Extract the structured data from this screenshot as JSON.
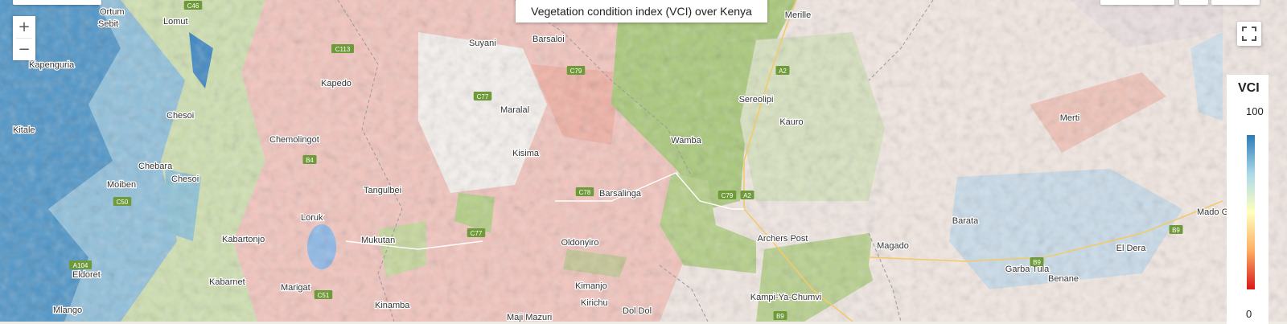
{
  "title": "Vegetation condition index (VCI) over Kenya",
  "legend": {
    "title": "VCI",
    "max": "100",
    "min": "0",
    "colors": [
      "#2c7bb6",
      "#abd9e9",
      "#ffffbf",
      "#fdae61",
      "#d7191c"
    ]
  },
  "controls": {
    "zoom_in": "+",
    "zoom_out": "−"
  },
  "places": [
    {
      "name": "Ortum"
    },
    {
      "name": "Sebit"
    },
    {
      "name": "Lomut"
    },
    {
      "name": "Kapenguria"
    },
    {
      "name": "Suyani"
    },
    {
      "name": "Barsaloi"
    },
    {
      "name": "Merille"
    },
    {
      "name": "Kapedo"
    },
    {
      "name": "Maralal"
    },
    {
      "name": "Sereolipi"
    },
    {
      "name": "Kauro"
    },
    {
      "name": "Chesoi"
    },
    {
      "name": "Merti"
    },
    {
      "name": "Kitale"
    },
    {
      "name": "Chemolingot"
    },
    {
      "name": "Wamba"
    },
    {
      "name": "Kisima"
    },
    {
      "name": "Chebara"
    },
    {
      "name": "Chesoi"
    },
    {
      "name": "Moiben"
    },
    {
      "name": "Tangulbei"
    },
    {
      "name": "Barsalinga"
    },
    {
      "name": "Barata"
    },
    {
      "name": "Loruk"
    },
    {
      "name": "Mado Gashi"
    },
    {
      "name": "Kabartonjo"
    },
    {
      "name": "Mukutan"
    },
    {
      "name": "Oldonyiro"
    },
    {
      "name": "Archers Post"
    },
    {
      "name": "Magado"
    },
    {
      "name": "El Dera"
    },
    {
      "name": "Eldoret"
    },
    {
      "name": "Kabarnet"
    },
    {
      "name": "Marigat"
    },
    {
      "name": "Kimanjo"
    },
    {
      "name": "Kampi-Ya-Chumvi"
    },
    {
      "name": "Garba Tula"
    },
    {
      "name": "Benane"
    },
    {
      "name": "Kirichu"
    },
    {
      "name": "Dol Dol"
    },
    {
      "name": "Kinamba"
    },
    {
      "name": "Maji Mazuri"
    },
    {
      "name": "Mlango"
    }
  ],
  "shields": [
    "C46",
    "C113",
    "C79",
    "A2",
    "C77",
    "B4",
    "C50",
    "C78",
    "C79",
    "A2",
    "C77",
    "B9",
    "B9",
    "C51",
    "B9",
    "A104"
  ]
}
